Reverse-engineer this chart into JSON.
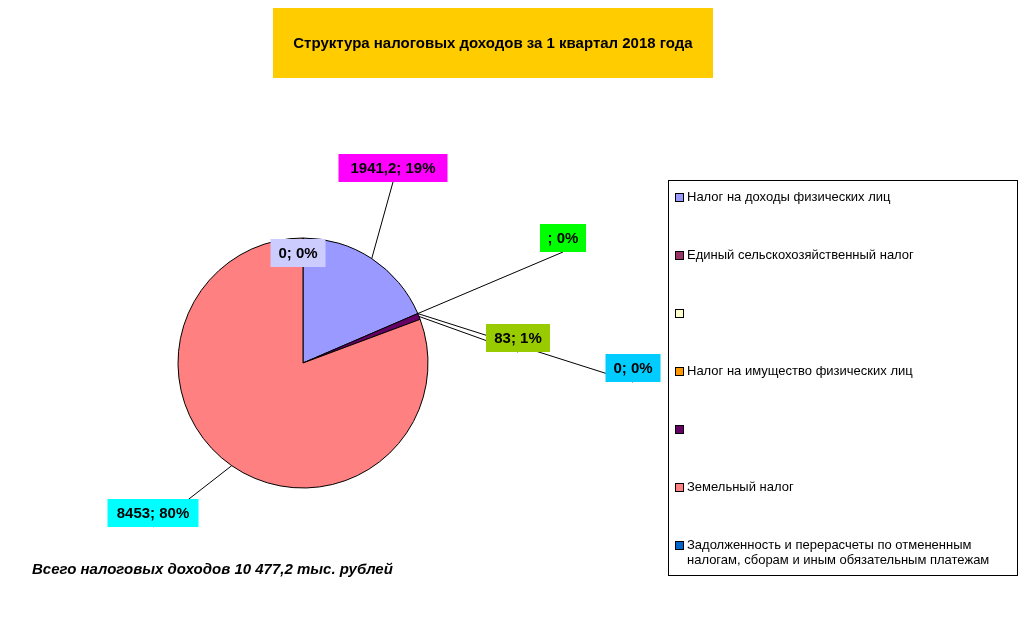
{
  "chart_data": {
    "type": "pie",
    "title": "Структура налоговых доходов за 1 квартал 2018 года",
    "categories": [
      "Налог на доходы физических лиц",
      "Единый сельскохозяйственный налог",
      null,
      "Налог на имущество физических лиц",
      null,
      "Земельный налог",
      "Задолженность и перерасчеты по отмененным налогам, сборам и иным обязательным платежам"
    ],
    "values": [
      1941.2,
      0,
      0,
      0,
      83,
      8453,
      0
    ],
    "colors": [
      "#9999ff",
      "#993366",
      "#ffffcc",
      "#ff9900",
      "#660066",
      "#ff8080",
      "#0066cc"
    ],
    "value_labels": [
      "1941,2; 19%",
      null,
      "; 0%",
      "0; 0%",
      "83; 1%",
      "8453; 80%",
      "0; 0%"
    ],
    "legend": "right",
    "annotations": [
      "Всего налоговых доходов 10 477,2 тыс. рублей"
    ]
  }
}
